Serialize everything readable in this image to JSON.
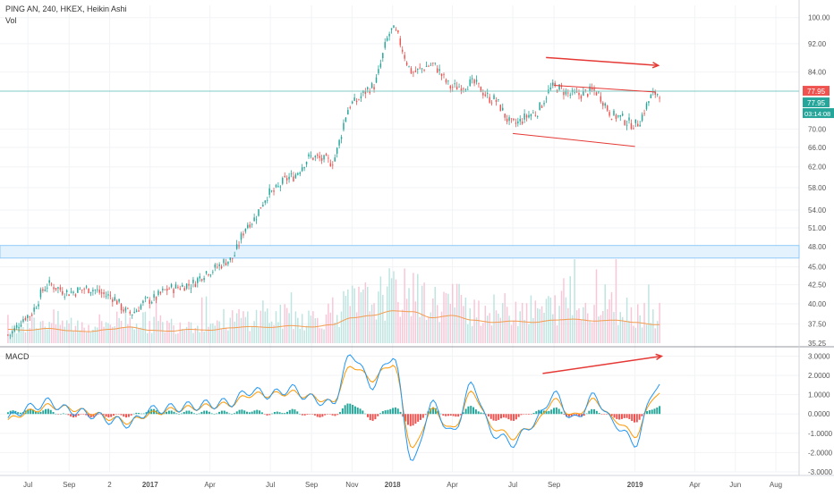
{
  "header": {
    "symbol_line": "PING AN, 240, HKEX, Heikin Ashi",
    "volume_label": "Vol",
    "macd_label": "MACD"
  },
  "price_scale": {
    "ticks": [
      "100.00",
      "92.00",
      "84.00",
      "77.95",
      "70.00",
      "66.00",
      "62.00",
      "58.00",
      "54.00",
      "51.00",
      "48.00",
      "45.00",
      "42.50",
      "40.00",
      "37.50",
      "35.25"
    ],
    "last_price": "77.95",
    "prev_price": "77.95",
    "countdown": "03:14:08"
  },
  "macd_scale": {
    "ticks": [
      "3.0000",
      "2.0000",
      "1.0000",
      "0.0000",
      "-1.0000",
      "-2.0000",
      "-3.0000"
    ]
  },
  "time_axis": {
    "labels": [
      "Jul",
      "Sep",
      "2",
      "2017",
      "Apr",
      "Jul",
      "Sep",
      "Nov",
      "2018",
      "Apr",
      "Jul",
      "Sep",
      "2019",
      "Apr",
      "Jun",
      "Aug"
    ]
  },
  "colors": {
    "up": "#26a69a",
    "down": "#ef5350",
    "volume_up": "#b2dfdb",
    "volume_down": "#f8bbd0",
    "volume_ma": "#f39c50",
    "macd_line": "#2196f3",
    "signal_line": "#ff9800",
    "annotation": "#e53935",
    "hline": "#80cbc4",
    "zone_fill": "#e3f2fd",
    "zone_border": "#90caf9",
    "last_price_badge": "#ef5350",
    "prev_price_badge": "#26a69a"
  },
  "chart_data": [
    {
      "type": "candlestick",
      "scale": "log",
      "ylim": [
        35.25,
        104
      ],
      "x": [
        "2016-06-01",
        "2016-07-01",
        "2016-08-01",
        "2016-09-01",
        "2016-10-01",
        "2016-11-01",
        "2016-12-01",
        "2017-01-01",
        "2017-02-01",
        "2017-03-01",
        "2017-04-01",
        "2017-05-01",
        "2017-06-01",
        "2017-07-01",
        "2017-08-01",
        "2017-09-01",
        "2017-10-01",
        "2017-11-01",
        "2017-12-01",
        "2018-01-01",
        "2018-02-01",
        "2018-03-01",
        "2018-04-01",
        "2018-05-01",
        "2018-06-01",
        "2018-07-01",
        "2018-08-01",
        "2018-09-01",
        "2018-10-01",
        "2018-11-01",
        "2018-12-01",
        "2019-01-01",
        "2019-02-01"
      ],
      "close": [
        36.2,
        38.5,
        42.5,
        41.5,
        42.0,
        41.0,
        38.8,
        40.5,
        42.0,
        42.5,
        44.5,
        46.0,
        52.0,
        57.0,
        60.0,
        64.0,
        63.0,
        76.0,
        80.0,
        96.0,
        84.0,
        86.0,
        80.0,
        81.0,
        77.0,
        71.0,
        73.5,
        80.0,
        78.0,
        79.0,
        73.0,
        71.0,
        78.5
      ],
      "annotations": {
        "horizontal_line": 79.0,
        "demand_zone": [
          46.3,
          48.2
        ],
        "channel_upper": {
          "from": [
            "2018-09-01",
            80.5
          ],
          "to": [
            "2019-02-01",
            78.8
          ]
        },
        "channel_lower": {
          "from": [
            "2018-07-01",
            69.0
          ],
          "to": [
            "2019-01-01",
            66.2
          ]
        },
        "trend_arrow": {
          "from": [
            "2018-08-20",
            88.0
          ],
          "to": [
            "2019-02-05",
            85.8
          ]
        }
      }
    },
    {
      "type": "bar",
      "title": "Vol",
      "x": [
        "2016-06-01",
        "2016-07-01",
        "2016-08-01",
        "2016-09-01",
        "2016-10-01",
        "2016-11-01",
        "2016-12-01",
        "2017-01-01",
        "2017-02-01",
        "2017-03-01",
        "2017-04-01",
        "2017-05-01",
        "2017-06-01",
        "2017-07-01",
        "2017-08-01",
        "2017-09-01",
        "2017-10-01",
        "2017-11-01",
        "2017-12-01",
        "2018-01-01",
        "2018-02-01",
        "2018-03-01",
        "2018-04-01",
        "2018-05-01",
        "2018-06-01",
        "2018-07-01",
        "2018-08-01",
        "2018-09-01",
        "2018-10-01",
        "2018-11-01",
        "2018-12-01",
        "2019-01-01",
        "2019-02-01"
      ],
      "values": [
        0.3,
        0.28,
        0.32,
        0.27,
        0.25,
        0.3,
        0.35,
        0.28,
        0.26,
        0.3,
        0.28,
        0.33,
        0.36,
        0.34,
        0.38,
        0.35,
        0.4,
        0.55,
        0.6,
        0.7,
        0.68,
        0.55,
        0.6,
        0.5,
        0.45,
        0.48,
        0.45,
        0.5,
        0.52,
        0.48,
        0.5,
        0.45,
        0.4
      ]
    },
    {
      "type": "line",
      "title": "MACD",
      "ylim": [
        -3,
        3.3
      ],
      "x": [
        "2016-06-01",
        "2016-07-01",
        "2016-08-01",
        "2016-09-01",
        "2016-10-01",
        "2016-11-01",
        "2016-12-01",
        "2017-01-01",
        "2017-02-01",
        "2017-03-01",
        "2017-04-01",
        "2017-05-01",
        "2017-06-01",
        "2017-07-01",
        "2017-08-01",
        "2017-09-01",
        "2017-10-01",
        "2017-11-01",
        "2017-12-01",
        "2018-01-01",
        "2018-02-01",
        "2018-03-01",
        "2018-04-01",
        "2018-05-01",
        "2018-06-01",
        "2018-07-01",
        "2018-08-01",
        "2018-09-01",
        "2018-10-01",
        "2018-11-01",
        "2018-12-01",
        "2019-01-01",
        "2019-02-01"
      ],
      "series": [
        {
          "values": [
            -0.2,
            0.3,
            0.6,
            0.2,
            0.0,
            -0.3,
            -0.5,
            0.2,
            0.3,
            0.4,
            0.5,
            0.6,
            1.2,
            1.0,
            1.3,
            0.8,
            0.5,
            3.1,
            1.5,
            3.0,
            -2.5,
            0.5,
            -1.0,
            1.5,
            -1.0,
            -1.5,
            -0.5,
            1.0,
            -0.3,
            0.9,
            -0.5,
            -1.5,
            1.4
          ]
        },
        {
          "values": [
            -0.3,
            0.1,
            0.4,
            0.3,
            0.1,
            -0.2,
            -0.4,
            0.0,
            0.2,
            0.3,
            0.4,
            0.5,
            1.0,
            1.0,
            1.1,
            0.9,
            0.6,
            2.5,
            1.8,
            2.6,
            -1.8,
            0.2,
            -0.8,
            1.1,
            -0.7,
            -1.2,
            -0.6,
            0.7,
            -0.1,
            0.7,
            -0.3,
            -1.1,
            1.0
          ]
        }
      ],
      "annotations": {
        "trend_arrow": {
          "from": [
            "2018-08-15",
            2.1
          ],
          "to": [
            "2019-02-10",
            3.0
          ]
        }
      }
    }
  ]
}
